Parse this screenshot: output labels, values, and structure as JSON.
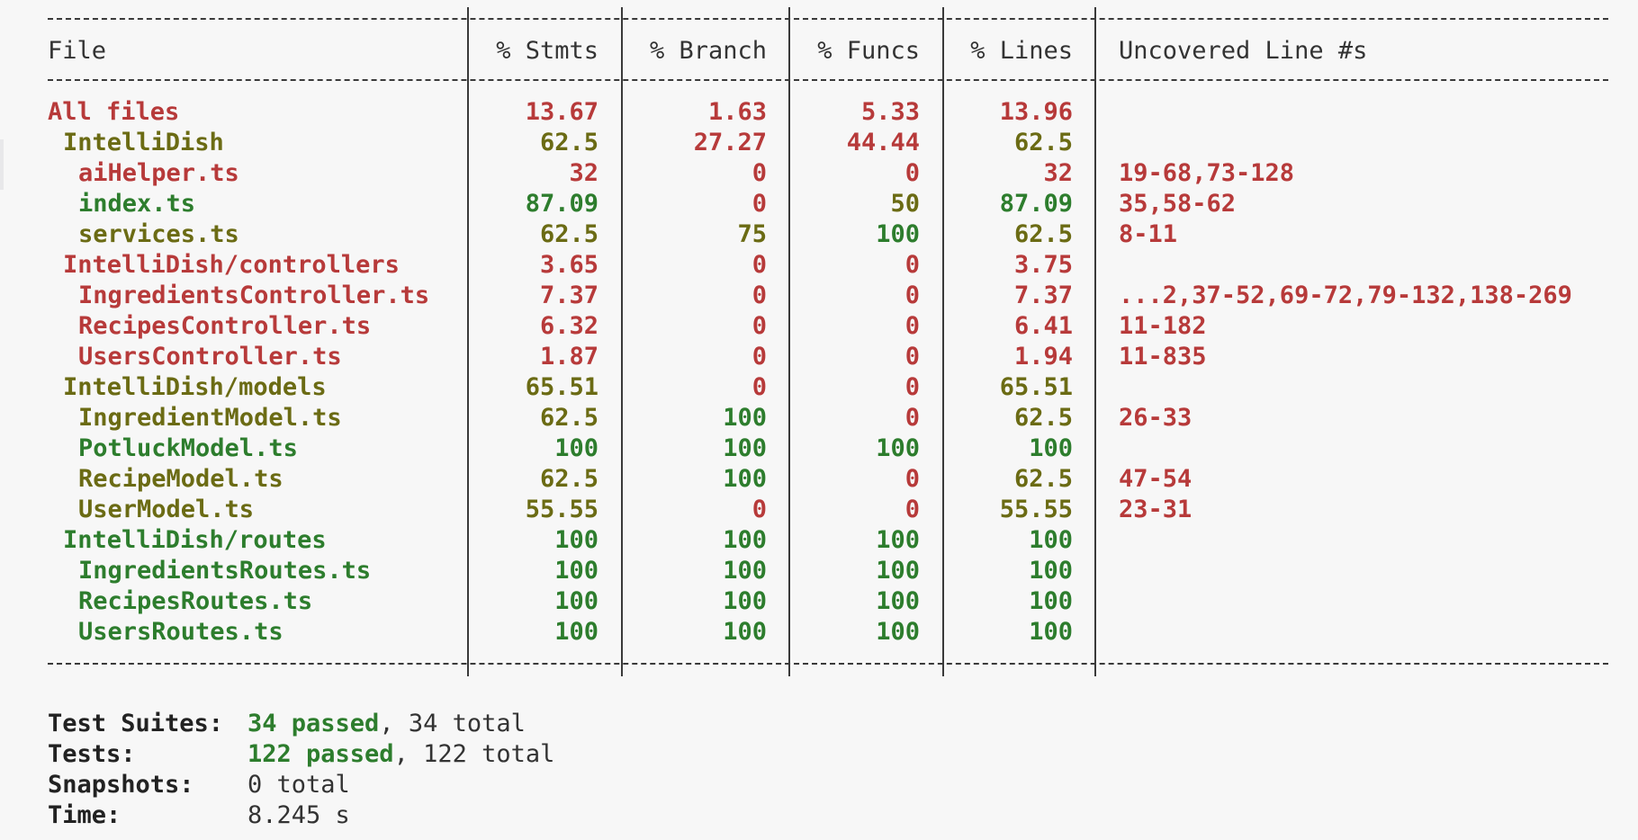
{
  "colors": {
    "high": "#2d7d2d",
    "medium": "#6b6b14",
    "low": "#b73a3a",
    "text": "#333333",
    "background": "#f7f7f7"
  },
  "table": {
    "headers": [
      "File",
      "% Stmts",
      "% Branch",
      "% Funcs",
      "% Lines",
      "Uncovered Line #s"
    ],
    "rows": [
      {
        "file": "All files",
        "indent": 0,
        "stmts": "13.67",
        "branch": "1.63",
        "funcs": "5.33",
        "lines": "13.96",
        "uncovered": "",
        "fileColor": "low",
        "stmtsColor": "low",
        "branchColor": "low",
        "funcsColor": "low",
        "linesColor": "low"
      },
      {
        "file": "IntelliDish",
        "indent": 1,
        "stmts": "62.5",
        "branch": "27.27",
        "funcs": "44.44",
        "lines": "62.5",
        "uncovered": "",
        "fileColor": "medium",
        "stmtsColor": "medium",
        "branchColor": "low",
        "funcsColor": "low",
        "linesColor": "medium"
      },
      {
        "file": "aiHelper.ts",
        "indent": 2,
        "stmts": "32",
        "branch": "0",
        "funcs": "0",
        "lines": "32",
        "uncovered": "19-68,73-128",
        "fileColor": "low",
        "stmtsColor": "low",
        "branchColor": "low",
        "funcsColor": "low",
        "linesColor": "low"
      },
      {
        "file": "index.ts",
        "indent": 2,
        "stmts": "87.09",
        "branch": "0",
        "funcs": "50",
        "lines": "87.09",
        "uncovered": "35,58-62",
        "fileColor": "high",
        "stmtsColor": "high",
        "branchColor": "low",
        "funcsColor": "medium",
        "linesColor": "high"
      },
      {
        "file": "services.ts",
        "indent": 2,
        "stmts": "62.5",
        "branch": "75",
        "funcs": "100",
        "lines": "62.5",
        "uncovered": "8-11",
        "fileColor": "medium",
        "stmtsColor": "medium",
        "branchColor": "medium",
        "funcsColor": "high",
        "linesColor": "medium"
      },
      {
        "file": "IntelliDish/controllers",
        "indent": 1,
        "stmts": "3.65",
        "branch": "0",
        "funcs": "0",
        "lines": "3.75",
        "uncovered": "",
        "fileColor": "low",
        "stmtsColor": "low",
        "branchColor": "low",
        "funcsColor": "low",
        "linesColor": "low"
      },
      {
        "file": "IngredientsController.ts",
        "indent": 2,
        "stmts": "7.37",
        "branch": "0",
        "funcs": "0",
        "lines": "7.37",
        "uncovered": "...2,37-52,69-72,79-132,138-269",
        "fileColor": "low",
        "stmtsColor": "low",
        "branchColor": "low",
        "funcsColor": "low",
        "linesColor": "low"
      },
      {
        "file": "RecipesController.ts",
        "indent": 2,
        "stmts": "6.32",
        "branch": "0",
        "funcs": "0",
        "lines": "6.41",
        "uncovered": "11-182",
        "fileColor": "low",
        "stmtsColor": "low",
        "branchColor": "low",
        "funcsColor": "low",
        "linesColor": "low"
      },
      {
        "file": "UsersController.ts",
        "indent": 2,
        "stmts": "1.87",
        "branch": "0",
        "funcs": "0",
        "lines": "1.94",
        "uncovered": "11-835",
        "fileColor": "low",
        "stmtsColor": "low",
        "branchColor": "low",
        "funcsColor": "low",
        "linesColor": "low"
      },
      {
        "file": "IntelliDish/models",
        "indent": 1,
        "stmts": "65.51",
        "branch": "0",
        "funcs": "0",
        "lines": "65.51",
        "uncovered": "",
        "fileColor": "medium",
        "stmtsColor": "medium",
        "branchColor": "low",
        "funcsColor": "low",
        "linesColor": "medium"
      },
      {
        "file": "IngredientModel.ts",
        "indent": 2,
        "stmts": "62.5",
        "branch": "100",
        "funcs": "0",
        "lines": "62.5",
        "uncovered": "26-33",
        "fileColor": "medium",
        "stmtsColor": "medium",
        "branchColor": "high",
        "funcsColor": "low",
        "linesColor": "medium"
      },
      {
        "file": "PotluckModel.ts",
        "indent": 2,
        "stmts": "100",
        "branch": "100",
        "funcs": "100",
        "lines": "100",
        "uncovered": "",
        "fileColor": "high",
        "stmtsColor": "high",
        "branchColor": "high",
        "funcsColor": "high",
        "linesColor": "high"
      },
      {
        "file": "RecipeModel.ts",
        "indent": 2,
        "stmts": "62.5",
        "branch": "100",
        "funcs": "0",
        "lines": "62.5",
        "uncovered": "47-54",
        "fileColor": "medium",
        "stmtsColor": "medium",
        "branchColor": "high",
        "funcsColor": "low",
        "linesColor": "medium"
      },
      {
        "file": "UserModel.ts",
        "indent": 2,
        "stmts": "55.55",
        "branch": "0",
        "funcs": "0",
        "lines": "55.55",
        "uncovered": "23-31",
        "fileColor": "medium",
        "stmtsColor": "medium",
        "branchColor": "low",
        "funcsColor": "low",
        "linesColor": "medium"
      },
      {
        "file": "IntelliDish/routes",
        "indent": 1,
        "stmts": "100",
        "branch": "100",
        "funcs": "100",
        "lines": "100",
        "uncovered": "",
        "fileColor": "high",
        "stmtsColor": "high",
        "branchColor": "high",
        "funcsColor": "high",
        "linesColor": "high"
      },
      {
        "file": "IngredientsRoutes.ts",
        "indent": 2,
        "stmts": "100",
        "branch": "100",
        "funcs": "100",
        "lines": "100",
        "uncovered": "",
        "fileColor": "high",
        "stmtsColor": "high",
        "branchColor": "high",
        "funcsColor": "high",
        "linesColor": "high"
      },
      {
        "file": "RecipesRoutes.ts",
        "indent": 2,
        "stmts": "100",
        "branch": "100",
        "funcs": "100",
        "lines": "100",
        "uncovered": "",
        "fileColor": "high",
        "stmtsColor": "high",
        "branchColor": "high",
        "funcsColor": "high",
        "linesColor": "high"
      },
      {
        "file": "UsersRoutes.ts",
        "indent": 2,
        "stmts": "100",
        "branch": "100",
        "funcs": "100",
        "lines": "100",
        "uncovered": "",
        "fileColor": "high",
        "stmtsColor": "high",
        "branchColor": "high",
        "funcsColor": "high",
        "linesColor": "high"
      }
    ]
  },
  "summary": {
    "suites": {
      "label": "Test Suites:",
      "passed": "34 passed",
      "rest": ", 34 total"
    },
    "tests": {
      "label": "Tests:",
      "passed": "122 passed",
      "rest": ", 122 total"
    },
    "snapshots": {
      "label": "Snapshots:",
      "value": "0 total"
    },
    "time": {
      "label": "Time:",
      "value": "8.245 s"
    }
  }
}
